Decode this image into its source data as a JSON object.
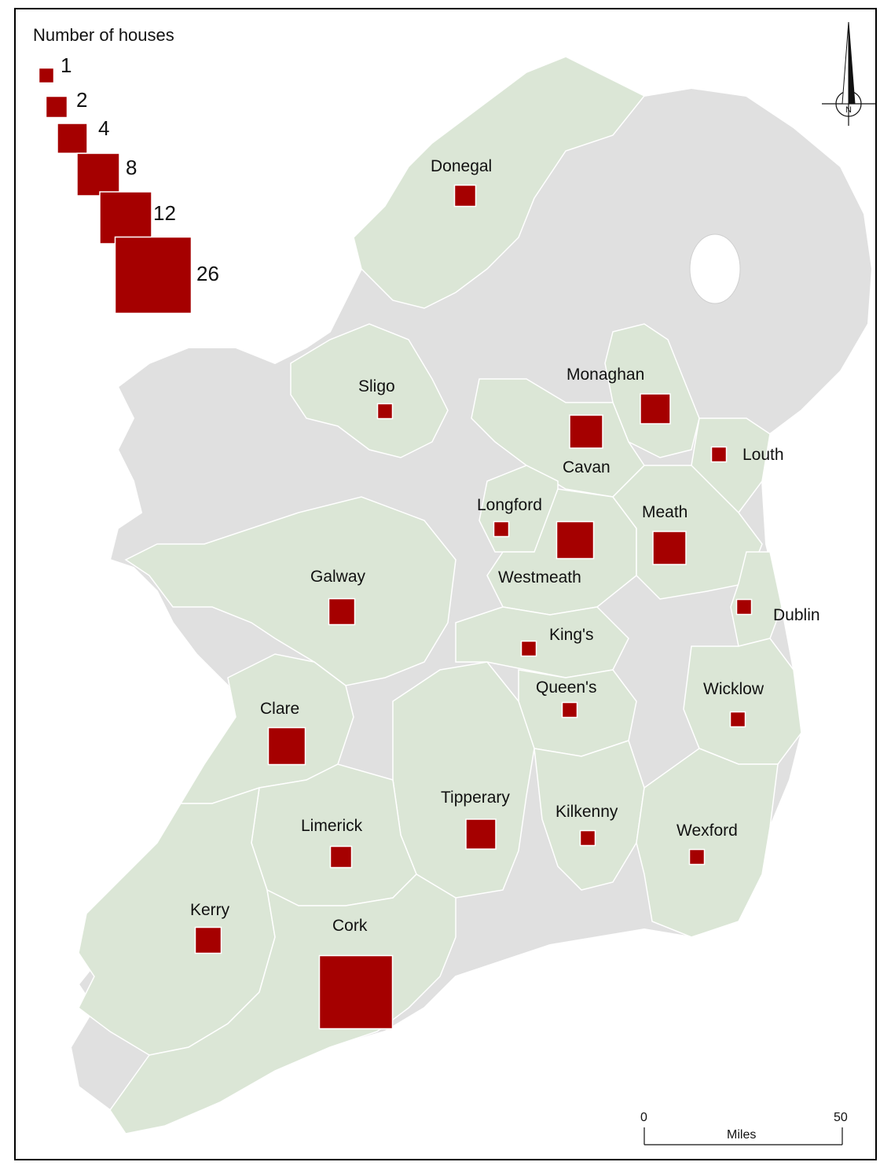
{
  "legend": {
    "title": "Number of houses",
    "entries": [
      {
        "label": "1",
        "value": 1
      },
      {
        "label": "2",
        "value": 2
      },
      {
        "label": "4",
        "value": 4
      },
      {
        "label": "8",
        "value": 8
      },
      {
        "label": "12",
        "value": 12
      },
      {
        "label": "26",
        "value": 26
      }
    ]
  },
  "counties": [
    {
      "name": "Donegal",
      "houses": 2
    },
    {
      "name": "Sligo",
      "houses": 1
    },
    {
      "name": "Monaghan",
      "houses": 4
    },
    {
      "name": "Cavan",
      "houses": 5
    },
    {
      "name": "Louth",
      "houses": 1
    },
    {
      "name": "Longford",
      "houses": 1
    },
    {
      "name": "Westmeath",
      "houses": 6
    },
    {
      "name": "Meath",
      "houses": 5
    },
    {
      "name": "Galway",
      "houses": 3
    },
    {
      "name": "Dublin",
      "houses": 1
    },
    {
      "name": "King's",
      "houses": 1
    },
    {
      "name": "Queen's",
      "houses": 1
    },
    {
      "name": "Wicklow",
      "houses": 1
    },
    {
      "name": "Clare",
      "houses": 6
    },
    {
      "name": "Tipperary",
      "houses": 4
    },
    {
      "name": "Kilkenny",
      "houses": 1
    },
    {
      "name": "Wexford",
      "houses": 1
    },
    {
      "name": "Limerick",
      "houses": 2
    },
    {
      "name": "Kerry",
      "houses": 3
    },
    {
      "name": "Cork",
      "houses": 24
    }
  ],
  "scale_bar": {
    "start": "0",
    "end": "50",
    "unit": "Miles"
  },
  "north_arrow": {
    "label": "N"
  },
  "colors": {
    "symbol": "#a50000",
    "highlighted_county": "#dbe6d6",
    "other_land": "#e0e0e0",
    "border": "#ffffff",
    "sea": "#ffffff"
  }
}
